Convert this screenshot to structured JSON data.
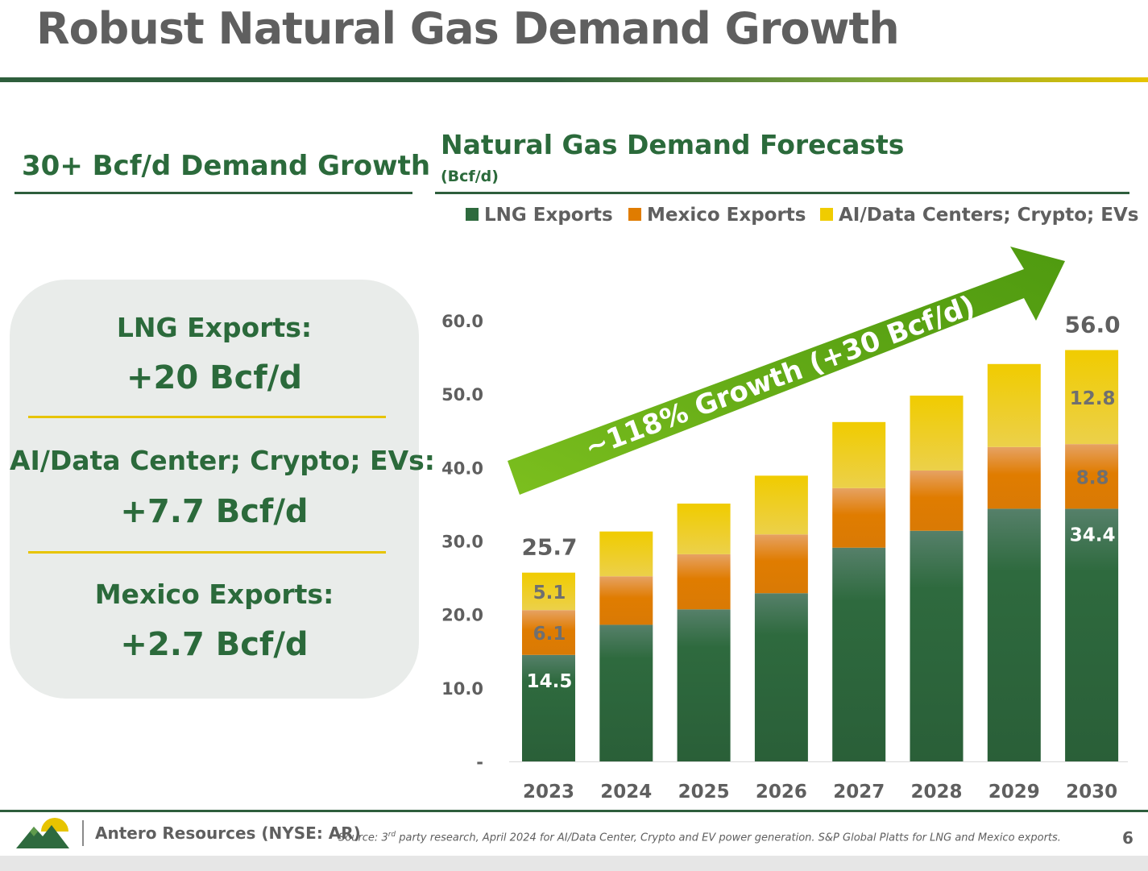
{
  "slide": {
    "title": "Robust Natural Gas Demand Growth",
    "left_heading": "30+ Bcf/d Demand Growth",
    "chart_heading": "Natural Gas Demand Forecasts",
    "chart_unit": "(Bcf/d)",
    "page_number": "6"
  },
  "summary": [
    {
      "label": "LNG Exports:",
      "value": "+20 Bcf/d"
    },
    {
      "label": "AI/Data Center; Crypto; EVs:",
      "value": "+7.7 Bcf/d"
    },
    {
      "label": "Mexico Exports:",
      "value": "+2.7 Bcf/d"
    }
  ],
  "footer": {
    "company": "Antero Resources (NYSE: AR)",
    "source_prefix": "Source:  3",
    "source_sup": "rd",
    "source_rest": " party research, April 2024 for AI/Data Center, Crypto and EV power generation. S&P Global Platts for LNG and Mexico exports.",
    "logo_icon": "mountain-sun-logo-icon"
  },
  "colors": {
    "lng": "#2e6a3e",
    "mexico": "#e07c00",
    "ai": "#f0cc00",
    "accent_green": "#2b6a3b",
    "arrow": "#6cb01a"
  },
  "chart_data": {
    "type": "bar",
    "stacked": true,
    "categories": [
      "2023",
      "2024",
      "2025",
      "2026",
      "2027",
      "2028",
      "2029",
      "2030"
    ],
    "series": [
      {
        "name": "LNG Exports",
        "values": [
          14.5,
          18.6,
          20.7,
          22.9,
          29.1,
          31.4,
          34.4,
          34.4
        ]
      },
      {
        "name": "Mexico Exports",
        "values": [
          6.1,
          6.6,
          7.5,
          8.0,
          8.1,
          8.2,
          8.4,
          8.8
        ]
      },
      {
        "name": "AI/Data Centers; Crypto; EVs",
        "values": [
          5.1,
          6.1,
          6.9,
          8.0,
          9.0,
          10.2,
          11.3,
          12.8
        ]
      }
    ],
    "data_labels": {
      "2023": {
        "total": "25.7",
        "LNG Exports": "14.5",
        "Mexico Exports": "6.1",
        "AI/Data Centers; Crypto; EVs": "5.1"
      },
      "2030": {
        "total": "56.0",
        "LNG Exports": "34.4",
        "Mexico Exports": "8.8",
        "AI/Data Centers; Crypto; EVs": "12.8"
      }
    },
    "y_ticks": [
      {
        "value": 0,
        "label": "-"
      },
      {
        "value": 10,
        "label": "10.0"
      },
      {
        "value": 20,
        "label": "20.0"
      },
      {
        "value": 30,
        "label": "30.0"
      },
      {
        "value": 40,
        "label": "40.0"
      },
      {
        "value": 50,
        "label": "50.0"
      },
      {
        "value": 60,
        "label": "60.0"
      }
    ],
    "ylim": [
      0,
      60
    ],
    "grid": false,
    "legend": "top",
    "annotation": "~118% Growth (+30 Bcf/d)"
  }
}
